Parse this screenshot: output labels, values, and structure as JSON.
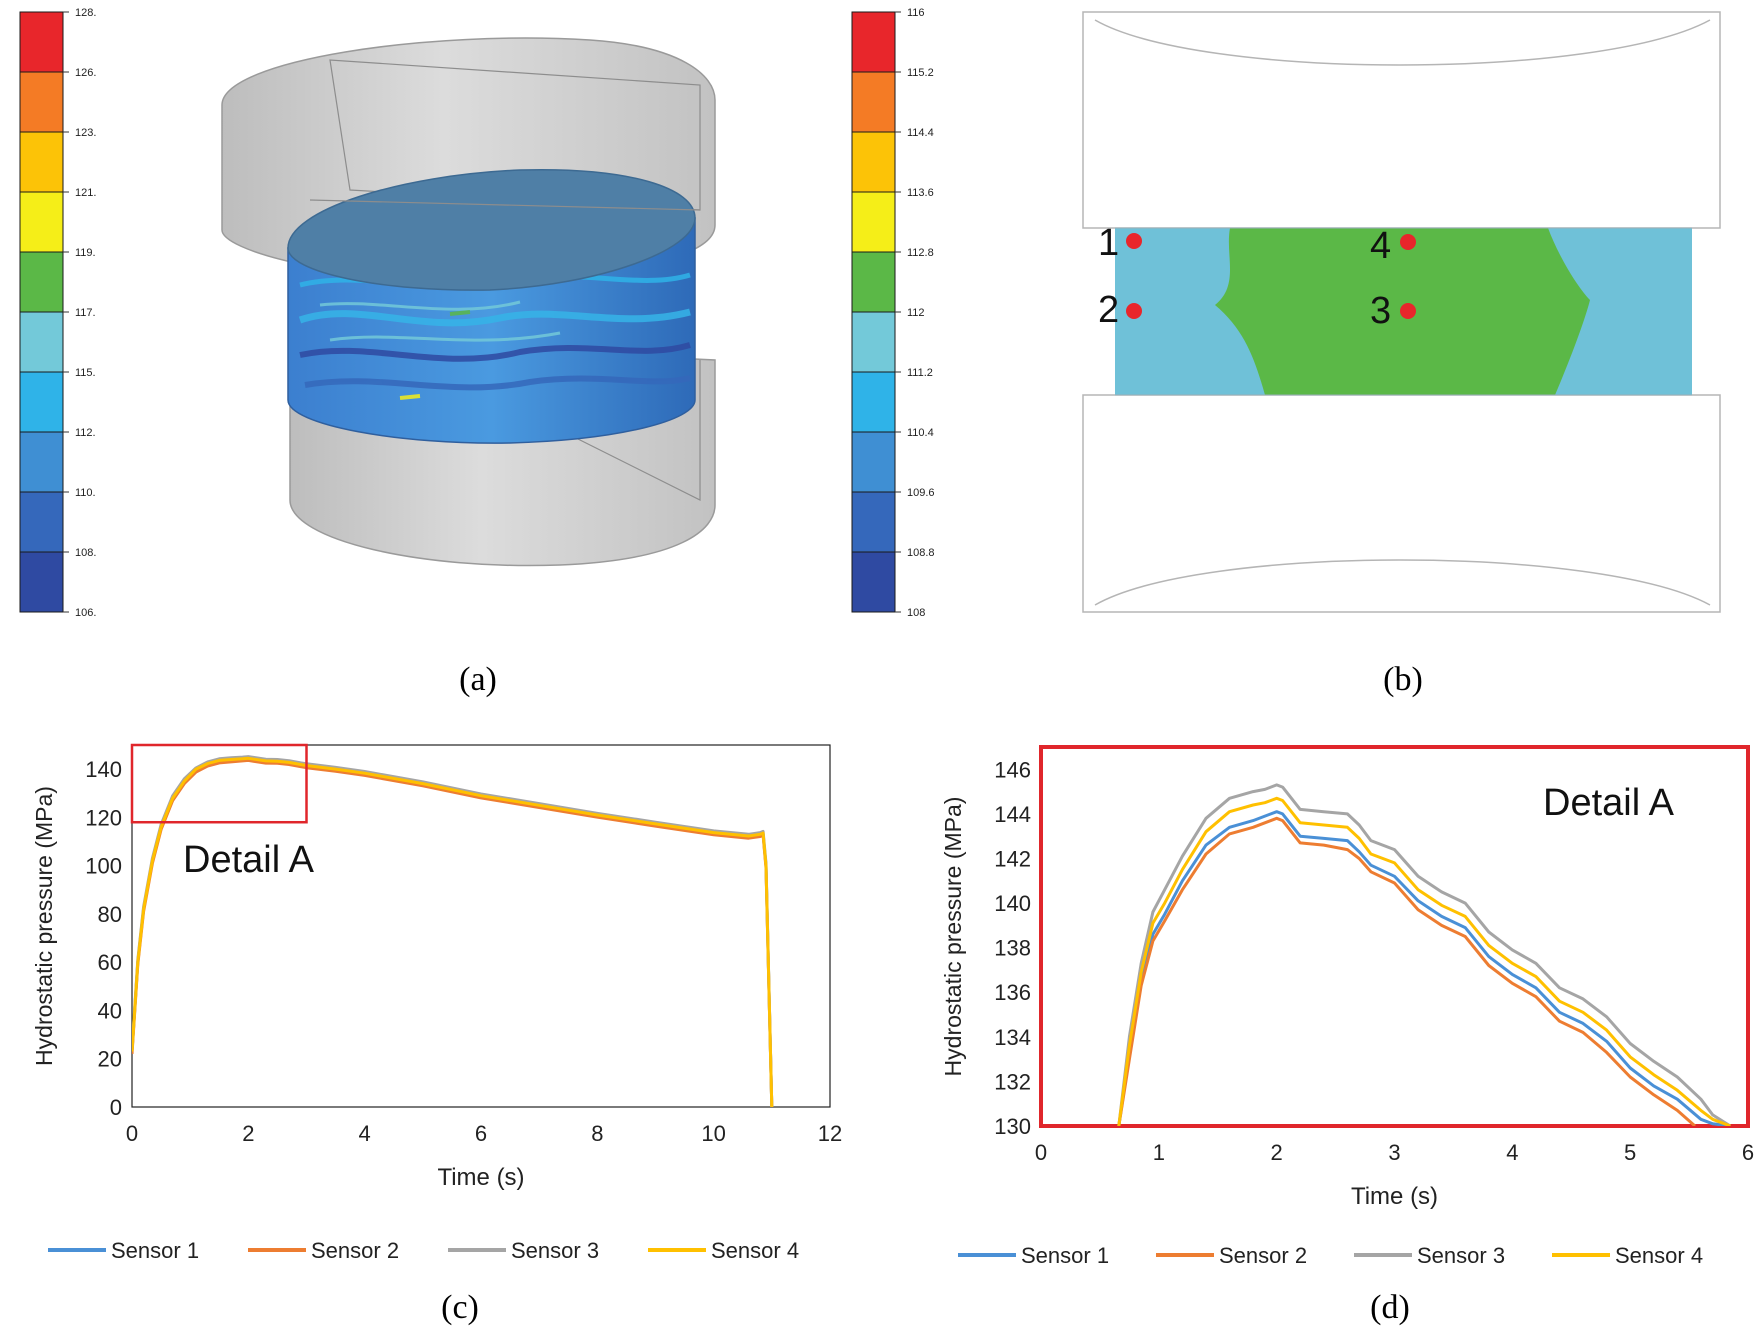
{
  "panel_labels": {
    "a": "(a)",
    "b": "(b)",
    "c": "(c)",
    "d": "(d)"
  },
  "colorbar_a": {
    "ticks": [
      "128.",
      "126.",
      "123.",
      "121.",
      "119.",
      "117.",
      "115.",
      "112.",
      "110.",
      "108.",
      "106."
    ],
    "colors": [
      "#e8262b",
      "#f47b25",
      "#fcc307",
      "#f5ee18",
      "#5bb847",
      "#73c9d9",
      "#2fb3e8",
      "#3f8fd3",
      "#3568bb",
      "#2f4aa2"
    ]
  },
  "colorbar_b": {
    "ticks": [
      "116",
      "115.2",
      "114.4",
      "113.6",
      "112.8",
      "112",
      "111.2",
      "110.4",
      "109.6",
      "108.8",
      "108"
    ]
  },
  "sensors_panel_b": {
    "labels": [
      "1",
      "2",
      "3",
      "4"
    ],
    "marker_color": "#e8262b",
    "outer_color": "#5bb847",
    "inner_color": "#6fc1d8"
  },
  "chart_data": [
    {
      "type": "line",
      "title": "",
      "xlabel": "Time (s)",
      "ylabel": "Hydrostatic pressure (MPa)",
      "xlim": [
        0,
        12
      ],
      "ylim": [
        0,
        150
      ],
      "xticks": [
        0,
        2,
        4,
        6,
        8,
        10,
        12
      ],
      "yticks": [
        0,
        20,
        40,
        60,
        80,
        100,
        120,
        140
      ],
      "annotation": "Detail A",
      "detail_box": {
        "x": [
          0,
          3
        ],
        "y": [
          118,
          150
        ]
      },
      "series": [
        {
          "name": "Sensor 1",
          "color": "#4a90d6",
          "x": [
            0,
            0.1,
            0.2,
            0.35,
            0.5,
            0.7,
            0.9,
            1.1,
            1.3,
            1.5,
            1.7,
            1.9,
            2.0,
            2.1,
            2.3,
            2.5,
            2.7,
            2.9,
            3.0,
            3.5,
            4.0,
            5.0,
            6.0,
            7.0,
            8.0,
            9.0,
            10.0,
            10.6,
            10.8,
            10.85,
            10.9,
            11.0
          ],
          "y": [
            23,
            60,
            82,
            102,
            116,
            128,
            135,
            139.5,
            141.8,
            143.0,
            143.4,
            143.8,
            144.0,
            143.6,
            142.9,
            142.8,
            142.3,
            141.4,
            141,
            139.5,
            137.8,
            133.5,
            128.5,
            124.5,
            120.5,
            116.8,
            113.2,
            111.8,
            112.5,
            113,
            100,
            0
          ]
        },
        {
          "name": "Sensor 2",
          "color": "#ed7d31",
          "x": [
            0,
            0.1,
            0.2,
            0.35,
            0.5,
            0.7,
            0.9,
            1.1,
            1.3,
            1.5,
            1.7,
            1.9,
            2.0,
            2.1,
            2.3,
            2.5,
            2.7,
            2.9,
            3.0,
            3.5,
            4.0,
            5.0,
            6.0,
            7.0,
            8.0,
            9.0,
            10.0,
            10.6,
            10.8,
            10.85,
            10.9,
            11.0
          ],
          "y": [
            22,
            59,
            81,
            101,
            115,
            127,
            134,
            138.8,
            141.3,
            142.6,
            143.0,
            143.4,
            143.6,
            143.2,
            142.5,
            142.4,
            141.9,
            141.0,
            140.6,
            139.1,
            137.4,
            133.1,
            128.1,
            124.1,
            120.1,
            116.4,
            112.8,
            111.4,
            112.1,
            112.6,
            99,
            0
          ]
        },
        {
          "name": "Sensor 3",
          "color": "#a5a5a5",
          "x": [
            0,
            0.1,
            0.2,
            0.35,
            0.5,
            0.7,
            0.9,
            1.1,
            1.3,
            1.5,
            1.7,
            1.9,
            2.0,
            2.1,
            2.3,
            2.5,
            2.7,
            2.9,
            3.0,
            3.5,
            4.0,
            5.0,
            6.0,
            7.0,
            8.0,
            9.0,
            10.0,
            10.6,
            10.8,
            10.85,
            10.9,
            11.0
          ],
          "y": [
            24,
            61,
            83,
            103,
            117,
            129,
            136,
            140.5,
            143.0,
            144.3,
            144.7,
            145.0,
            145.2,
            144.8,
            144.1,
            144.0,
            143.5,
            142.6,
            142.2,
            140.7,
            139.0,
            134.7,
            129.7,
            125.7,
            121.7,
            118.0,
            114.4,
            113.0,
            113.7,
            114.2,
            101,
            0
          ]
        },
        {
          "name": "Sensor 4",
          "color": "#ffc000",
          "x": [
            0,
            0.1,
            0.2,
            0.35,
            0.5,
            0.7,
            0.9,
            1.1,
            1.3,
            1.5,
            1.7,
            1.9,
            2.0,
            2.1,
            2.3,
            2.5,
            2.7,
            2.9,
            3.0,
            3.5,
            4.0,
            5.0,
            6.0,
            7.0,
            8.0,
            9.0,
            10.0,
            10.6,
            10.8,
            10.85,
            10.9,
            11.0
          ],
          "y": [
            23,
            60,
            82,
            102,
            116,
            128,
            135,
            140,
            142.3,
            143.6,
            144.0,
            144.3,
            144.5,
            144.1,
            143.4,
            143.3,
            142.8,
            141.9,
            141.5,
            140.0,
            138.3,
            134.0,
            129.0,
            125.0,
            121.0,
            117.3,
            113.7,
            112.3,
            113.0,
            113.5,
            100,
            0
          ]
        }
      ],
      "legend": "bottom"
    },
    {
      "type": "line",
      "title": "",
      "xlabel": "Time (s)",
      "ylabel": "Hydrostatic pressure (MPa)",
      "xlim": [
        0,
        6
      ],
      "ylim": [
        130,
        147
      ],
      "xticks": [
        0,
        1,
        2,
        3,
        4,
        5,
        6
      ],
      "yticks": [
        130,
        132,
        134,
        136,
        138,
        140,
        142,
        144,
        146
      ],
      "annotation": "Detail A",
      "series": [
        {
          "name": "Sensor 1",
          "color": "#4a90d6",
          "x": [
            0.66,
            0.75,
            0.85,
            0.95,
            1.05,
            1.2,
            1.4,
            1.6,
            1.8,
            1.9,
            2.0,
            2.05,
            2.2,
            2.4,
            2.6,
            2.7,
            2.8,
            3.0,
            3.2,
            3.4,
            3.6,
            3.8,
            4.0,
            4.2,
            4.4,
            4.6,
            4.8,
            5.0,
            5.2,
            5.4,
            5.6,
            5.7,
            5.85
          ],
          "y": [
            130,
            133.2,
            136.5,
            138.6,
            139.5,
            141.0,
            142.6,
            143.4,
            143.7,
            143.9,
            144.1,
            144.0,
            143.0,
            142.9,
            142.8,
            142.3,
            141.7,
            141.2,
            140.1,
            139.4,
            138.9,
            137.6,
            136.8,
            136.2,
            135.1,
            134.6,
            133.8,
            132.6,
            131.8,
            131.2,
            130.3,
            130.1,
            130
          ]
        },
        {
          "name": "Sensor 2",
          "color": "#ed7d31",
          "x": [
            0.66,
            0.75,
            0.85,
            0.95,
            1.05,
            1.2,
            1.4,
            1.6,
            1.8,
            1.9,
            2.0,
            2.05,
            2.2,
            2.4,
            2.6,
            2.7,
            2.8,
            3.0,
            3.2,
            3.4,
            3.6,
            3.8,
            4.0,
            4.2,
            4.4,
            4.6,
            4.8,
            5.0,
            5.2,
            5.4,
            5.55
          ],
          "y": [
            130,
            133.0,
            136.3,
            138.3,
            139.2,
            140.6,
            142.2,
            143.1,
            143.4,
            143.6,
            143.8,
            143.7,
            142.7,
            142.6,
            142.4,
            142.0,
            141.4,
            140.9,
            139.7,
            139.0,
            138.5,
            137.2,
            136.4,
            135.8,
            134.7,
            134.2,
            133.3,
            132.2,
            131.4,
            130.7,
            130
          ]
        },
        {
          "name": "Sensor 3",
          "color": "#a5a5a5",
          "x": [
            0.66,
            0.75,
            0.85,
            0.95,
            1.05,
            1.2,
            1.4,
            1.6,
            1.8,
            1.9,
            2.0,
            2.05,
            2.2,
            2.4,
            2.6,
            2.7,
            2.8,
            3.0,
            3.2,
            3.4,
            3.6,
            3.8,
            4.0,
            4.2,
            4.4,
            4.6,
            4.8,
            5.0,
            5.2,
            5.4,
            5.6,
            5.7,
            5.85
          ],
          "y": [
            130,
            134.0,
            137.3,
            139.6,
            140.6,
            142.1,
            143.8,
            144.7,
            145.0,
            145.1,
            145.3,
            145.2,
            144.2,
            144.1,
            144.0,
            143.5,
            142.8,
            142.4,
            141.2,
            140.5,
            140.0,
            138.7,
            137.9,
            137.3,
            136.2,
            135.7,
            134.9,
            133.7,
            132.9,
            132.2,
            131.2,
            130.5,
            130
          ]
        },
        {
          "name": "Sensor 4",
          "color": "#ffc000",
          "x": [
            0.66,
            0.75,
            0.85,
            0.95,
            1.05,
            1.2,
            1.4,
            1.6,
            1.8,
            1.9,
            2.0,
            2.05,
            2.2,
            2.4,
            2.6,
            2.7,
            2.8,
            3.0,
            3.2,
            3.4,
            3.6,
            3.8,
            4.0,
            4.2,
            4.4,
            4.6,
            4.8,
            5.0,
            5.2,
            5.4,
            5.6,
            5.7,
            5.85
          ],
          "y": [
            130,
            133.6,
            136.9,
            139.1,
            140.0,
            141.5,
            143.2,
            144.1,
            144.4,
            144.5,
            144.7,
            144.6,
            143.6,
            143.5,
            143.4,
            142.9,
            142.2,
            141.8,
            140.6,
            139.9,
            139.4,
            138.1,
            137.3,
            136.7,
            135.6,
            135.1,
            134.3,
            133.1,
            132.3,
            131.6,
            130.7,
            130.3,
            130
          ]
        }
      ],
      "legend": "bottom"
    }
  ]
}
